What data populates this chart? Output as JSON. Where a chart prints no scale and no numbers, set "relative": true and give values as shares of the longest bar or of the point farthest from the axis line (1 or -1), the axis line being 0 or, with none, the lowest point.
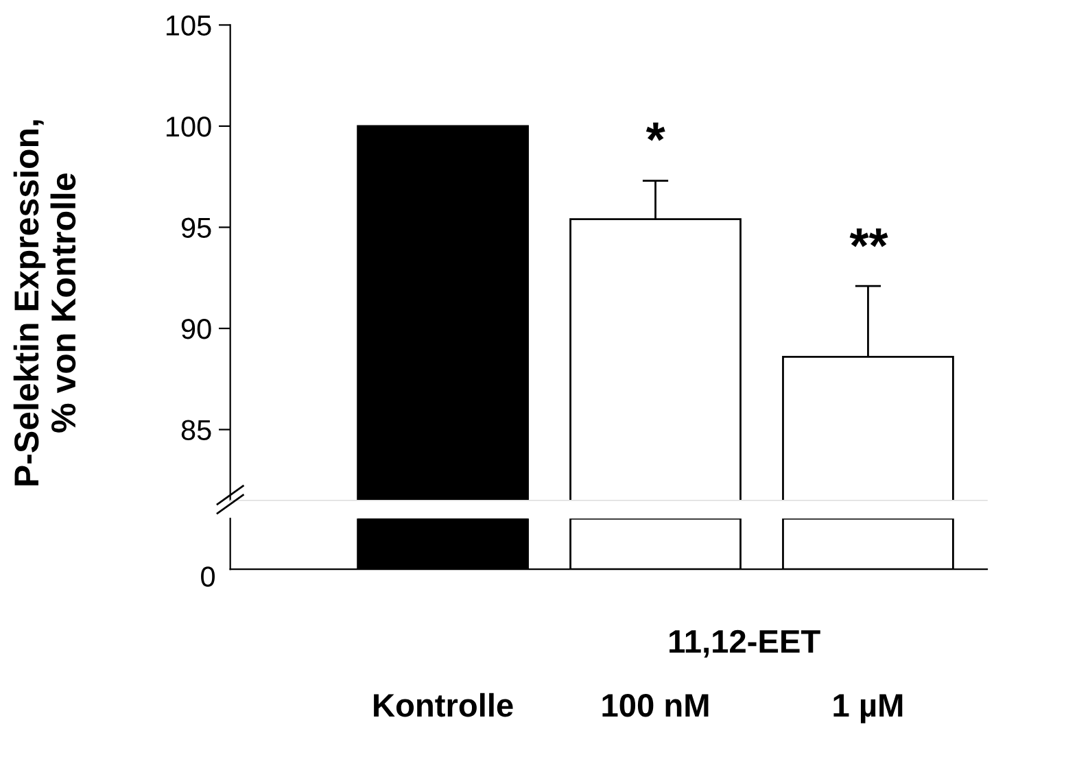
{
  "chart_data": [
    {
      "type": "bar",
      "ylabel": "P-Selektin Expression,\n% von Kontrolle",
      "categories": [
        null,
        null,
        null
      ],
      "values": [
        100,
        95.4,
        88.6
      ],
      "colors": [
        "#000000",
        "#ffffff",
        "#ffffff"
      ],
      "errors": [
        null,
        [
          95.4,
          97.3
        ],
        [
          88.6,
          92.1
        ]
      ],
      "ylim": [
        81.5,
        105
      ],
      "yticks": [
        85,
        90,
        95,
        100,
        105
      ],
      "tick_labels": "y",
      "grid": false,
      "annotations": [
        "*",
        "**"
      ]
    },
    {
      "type": "bar",
      "relative": true,
      "categories": [
        "Kontrolle",
        "100 nM",
        "1 µM"
      ],
      "values": [
        1,
        1,
        1
      ],
      "colors": [
        "#000000",
        "#ffffff",
        "#ffffff"
      ],
      "annotations": [
        "0",
        "11,12-EET"
      ]
    }
  ]
}
